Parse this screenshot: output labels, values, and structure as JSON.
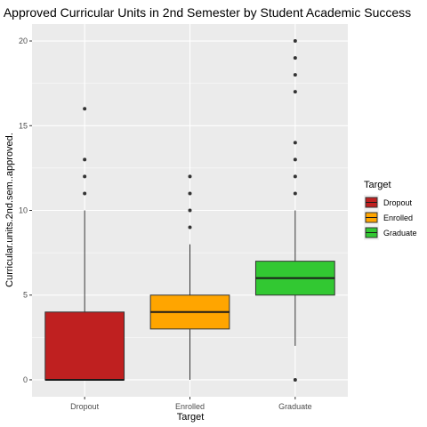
{
  "chart_data": {
    "type": "boxplot",
    "title": "Approved Curricular Units in 2nd Semester by Student Academic Success",
    "xlabel": "Target",
    "ylabel": "Curricular.units.2nd.sem..approved.",
    "ylim": [
      -1,
      21
    ],
    "yticks": [
      0,
      5,
      10,
      15,
      20
    ],
    "grid": true,
    "categories": [
      "Dropout",
      "Enrolled",
      "Graduate"
    ],
    "series": [
      {
        "name": "Dropout",
        "color": "#bf2020",
        "min": 0,
        "q1": 0,
        "median": 0,
        "q3": 4,
        "max": 10,
        "outliers": [
          11,
          12,
          13,
          16
        ]
      },
      {
        "name": "Enrolled",
        "color": "#ffa500",
        "min": 0,
        "q1": 3,
        "median": 4,
        "q3": 5,
        "max": 8,
        "outliers": [
          9,
          10,
          11,
          12
        ]
      },
      {
        "name": "Graduate",
        "color": "#32c832",
        "min": 2,
        "q1": 5,
        "median": 6,
        "q3": 7,
        "max": 10,
        "outliers": [
          0,
          11,
          12,
          13,
          14,
          17,
          18,
          19,
          20
        ]
      }
    ],
    "legend": {
      "title": "Target",
      "position": "right",
      "entries": [
        "Dropout",
        "Enrolled",
        "Graduate"
      ]
    }
  }
}
